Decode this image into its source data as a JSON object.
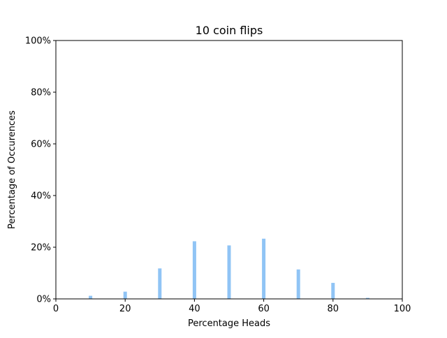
{
  "chart_data": {
    "type": "bar",
    "title": "10 coin flips",
    "xlabel": "Percentage Heads",
    "ylabel": "Percentage of Occurences",
    "xlim": [
      0,
      100
    ],
    "ylim": [
      0,
      100
    ],
    "x_ticks": [
      "0",
      "20",
      "40",
      "60",
      "80",
      "100"
    ],
    "x_tick_values": [
      0,
      20,
      40,
      60,
      80,
      100
    ],
    "y_ticks": [
      "0%",
      "20%",
      "40%",
      "60%",
      "80%",
      "100%"
    ],
    "y_tick_values": [
      0,
      20,
      40,
      60,
      80,
      100
    ],
    "grid": false,
    "bar_color": "#90c4f5",
    "series": [
      {
        "x": [
          0,
          10,
          20,
          30,
          40,
          50,
          60,
          70,
          80,
          90,
          100
        ],
        "values": [
          0.0,
          1.2,
          2.8,
          11.8,
          22.3,
          20.7,
          23.3,
          11.4,
          6.2,
          0.4,
          0.0
        ]
      }
    ]
  }
}
